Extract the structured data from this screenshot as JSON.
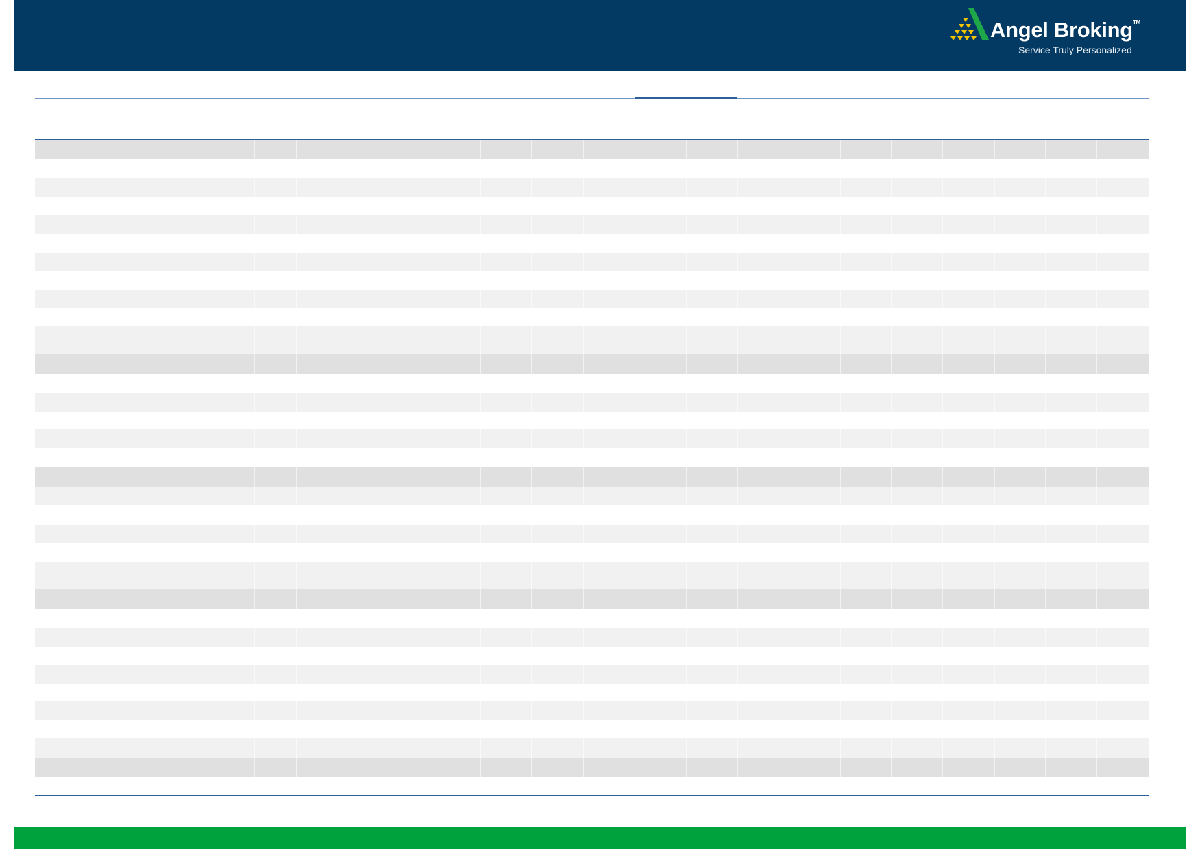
{
  "header": {
    "logo": {
      "name": "Angel Broking",
      "trademark": "TM",
      "tagline": "Service Truly Personalized"
    },
    "colors": {
      "banner": "#033a63",
      "logo_green": "#1ea84a",
      "logo_gold": "#f5c400"
    }
  },
  "footer": {
    "color": "#00a23d"
  },
  "table": {
    "colors": {
      "rule": "#2d5f9a",
      "section_row": "#e0e0e0",
      "alt_row": "#f1f1f1"
    }
  }
}
